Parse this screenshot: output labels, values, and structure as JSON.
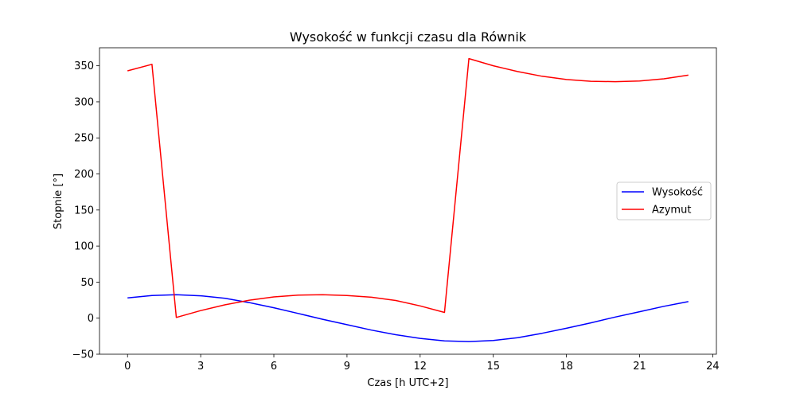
{
  "chart_data": {
    "type": "line",
    "title": "Wysokość w funkcji czasu dla Równik",
    "xlabel": "Czas [h UTC+2]",
    "ylabel": "Stopnie [°]",
    "xlim": [
      -1.15,
      24.15
    ],
    "ylim": [
      -50,
      375
    ],
    "xticks": [
      0,
      3,
      6,
      9,
      12,
      15,
      18,
      21,
      24
    ],
    "yticks": [
      -50,
      0,
      50,
      100,
      150,
      200,
      250,
      300,
      350
    ],
    "grid": false,
    "legend_position": "center right",
    "x": [
      0,
      1,
      2,
      3,
      4,
      5,
      6,
      7,
      8,
      9,
      10,
      11,
      12,
      13,
      14,
      15,
      16,
      17,
      18,
      19,
      20,
      21,
      22,
      23
    ],
    "series": [
      {
        "name": "Wysokość",
        "color": "#0000ff",
        "values": [
          28,
          31.5,
          32.5,
          31,
          27.5,
          21.5,
          14.5,
          6.5,
          -1.5,
          -9,
          -16.5,
          -23,
          -28,
          -31.5,
          -32.5,
          -31,
          -27,
          -21,
          -14,
          -6.5,
          1.5,
          9,
          16.5,
          23
        ]
      },
      {
        "name": "Azymut",
        "color": "#ff0000",
        "values": [
          343,
          352,
          1,
          10.5,
          18.5,
          25,
          29.5,
          32,
          32.5,
          31.5,
          29,
          24.5,
          17,
          8,
          360,
          350,
          342,
          335.5,
          331,
          328.5,
          328,
          329,
          332,
          337
        ]
      }
    ]
  }
}
